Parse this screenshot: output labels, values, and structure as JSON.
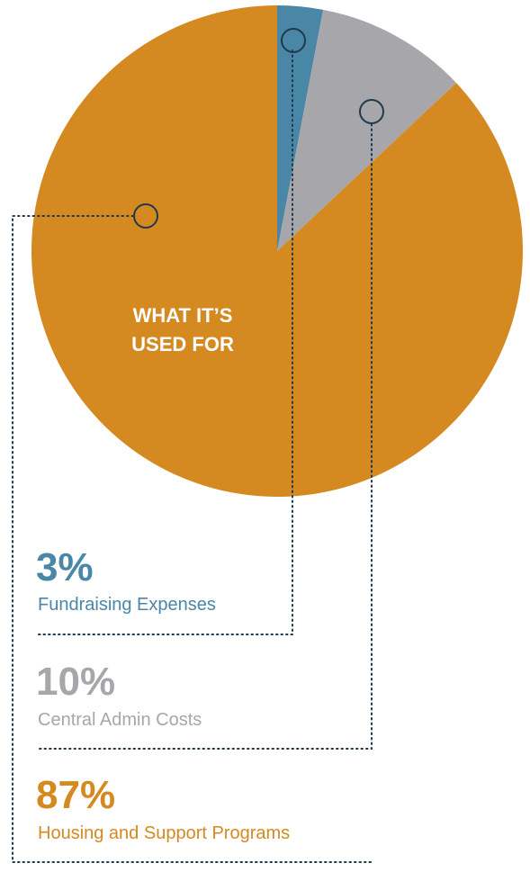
{
  "chart_data": {
    "type": "pie",
    "title": "WHAT IT’S USED FOR",
    "title_lines": [
      "WHAT IT’S",
      "USED FOR"
    ],
    "slices": [
      {
        "label": "Fundraising Expenses",
        "value": 3,
        "display": "3%",
        "color": "#4a86a6"
      },
      {
        "label": "Central Admin Costs",
        "value": 10,
        "display": "10%",
        "color": "#a7a7ab"
      },
      {
        "label": "Housing and Support Programs",
        "value": 87,
        "display": "87%",
        "color": "#d48a20"
      }
    ],
    "legend_placement": "bottom-left",
    "start": "12 o'clock",
    "direction": "clockwise"
  }
}
